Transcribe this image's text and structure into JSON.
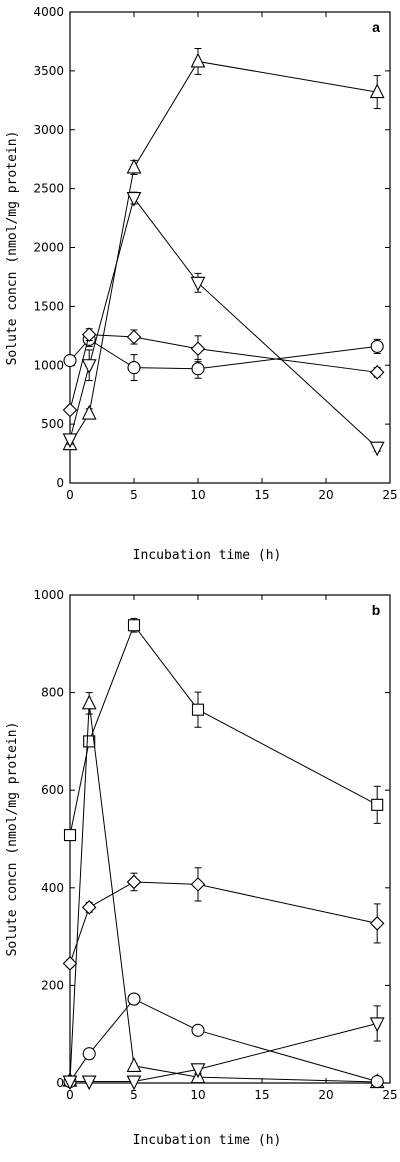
{
  "chart_data": [
    {
      "type": "line",
      "panel_label": "a",
      "xlabel": "Incubation time (h)",
      "ylabel": "Solute concn (nmol/mg protein)",
      "x": [
        0,
        1.5,
        5,
        10,
        24
      ],
      "xlim": [
        0,
        25
      ],
      "ylim": [
        0,
        4000
      ],
      "xticks": [
        0,
        5,
        10,
        15,
        20,
        25
      ],
      "yticks": [
        0,
        500,
        1000,
        1500,
        2000,
        2500,
        3000,
        3500,
        4000
      ],
      "series": [
        {
          "marker": "triangle-up",
          "values": [
            330,
            590,
            2680,
            3580,
            3320
          ],
          "errors": [
            40,
            40,
            60,
            110,
            140
          ]
        },
        {
          "marker": "triangle-down",
          "values": [
            370,
            1000,
            2420,
            1700,
            300
          ],
          "errors": [
            40,
            130,
            50,
            80,
            30
          ]
        },
        {
          "marker": "circle",
          "values": [
            1040,
            1220,
            980,
            970,
            1160
          ],
          "errors": [
            40,
            60,
            110,
            80,
            60
          ]
        },
        {
          "marker": "diamond",
          "values": [
            620,
            1260,
            1240,
            1140,
            940
          ],
          "errors": [
            30,
            50,
            60,
            110,
            40
          ]
        }
      ]
    },
    {
      "type": "line",
      "panel_label": "b",
      "xlabel": "Incubation time (h)",
      "ylabel": "Solute concn (nmol/mg protein)",
      "x": [
        0,
        1.5,
        5,
        10,
        24
      ],
      "xlim": [
        0,
        25
      ],
      "ylim": [
        0,
        1000
      ],
      "xticks": [
        0,
        5,
        10,
        15,
        20,
        25
      ],
      "yticks": [
        0,
        200,
        400,
        600,
        800,
        1000
      ],
      "series": [
        {
          "marker": "square",
          "values": [
            508,
            700,
            938,
            765,
            570
          ],
          "errors": [
            8,
            10,
            14,
            36,
            38
          ]
        },
        {
          "marker": "triangle-up",
          "values": [
            5,
            778,
            35,
            12,
            2
          ],
          "errors": [
            3,
            22,
            5,
            5,
            2
          ]
        },
        {
          "marker": "diamond",
          "values": [
            245,
            360,
            412,
            407,
            327
          ],
          "errors": [
            8,
            10,
            18,
            34,
            40
          ]
        },
        {
          "marker": "circle",
          "values": [
            3,
            60,
            172,
            108,
            3
          ],
          "errors": [
            2,
            4,
            5,
            5,
            2
          ]
        },
        {
          "marker": "triangle-down",
          "values": [
            3,
            3,
            3,
            28,
            122
          ],
          "errors": [
            2,
            2,
            2,
            8,
            36
          ]
        }
      ]
    }
  ]
}
